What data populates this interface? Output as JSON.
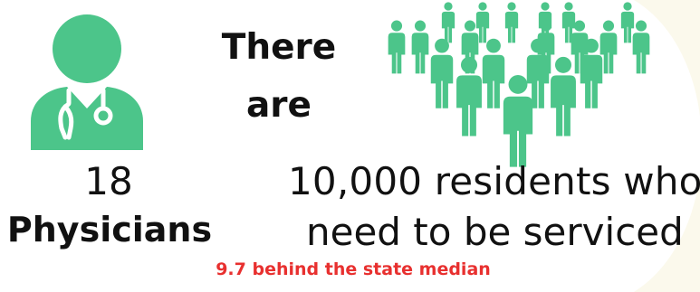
{
  "colors": {
    "figure_green": "#4cc58a",
    "text_dark": "#111111",
    "highlight_red": "#e8302f",
    "background_arc": "#fbf9ec"
  },
  "icons": {
    "left": "doctor-with-stethoscope-icon",
    "right": "crowd-of-people-icon"
  },
  "heading": {
    "line1": "There",
    "line2": "are"
  },
  "physicians": {
    "count": "18",
    "label": "Physicians"
  },
  "residents": {
    "line1": "10,000 residents who",
    "line2": "need to be serviced"
  },
  "footnote": "9.7 behind the state median"
}
